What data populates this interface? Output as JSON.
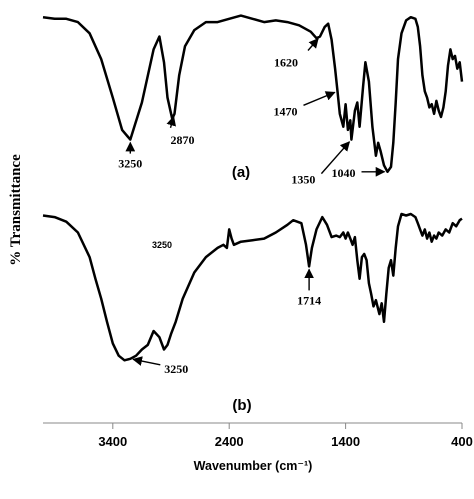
{
  "chart_data": {
    "type": "line",
    "ylabel": "% Transmittance",
    "xlabel": "Wavenumber (cm⁻¹)",
    "xlim": [
      4000,
      400
    ],
    "x_reversed": true,
    "x_ticks": [
      {
        "value": 3400,
        "label": "3400"
      },
      {
        "value": 2400,
        "label": "2400"
      },
      {
        "value": 1400,
        "label": "1400"
      },
      {
        "value": 400,
        "label": "400"
      }
    ],
    "panels": [
      {
        "label": "(a)",
        "points": [
          [
            4000,
            98
          ],
          [
            3900,
            97
          ],
          [
            3800,
            97
          ],
          [
            3700,
            95
          ],
          [
            3600,
            88
          ],
          [
            3500,
            72
          ],
          [
            3400,
            48
          ],
          [
            3320,
            28
          ],
          [
            3250,
            22
          ],
          [
            3150,
            45
          ],
          [
            3050,
            78
          ],
          [
            3000,
            86
          ],
          [
            2960,
            70
          ],
          [
            2930,
            48
          ],
          [
            2890,
            35
          ],
          [
            2870,
            38
          ],
          [
            2830,
            62
          ],
          [
            2780,
            80
          ],
          [
            2700,
            90
          ],
          [
            2600,
            95
          ],
          [
            2500,
            95
          ],
          [
            2400,
            97
          ],
          [
            2300,
            99
          ],
          [
            2200,
            97
          ],
          [
            2100,
            95
          ],
          [
            2000,
            96
          ],
          [
            1900,
            95
          ],
          [
            1800,
            93
          ],
          [
            1700,
            89
          ],
          [
            1650,
            85
          ],
          [
            1620,
            86
          ],
          [
            1580,
            92
          ],
          [
            1550,
            94
          ],
          [
            1520,
            84
          ],
          [
            1490,
            66
          ],
          [
            1470,
            52
          ],
          [
            1450,
            38
          ],
          [
            1420,
            30
          ],
          [
            1400,
            44
          ],
          [
            1380,
            28
          ],
          [
            1360,
            34
          ],
          [
            1350,
            22
          ],
          [
            1320,
            40
          ],
          [
            1300,
            45
          ],
          [
            1280,
            30
          ],
          [
            1250,
            55
          ],
          [
            1230,
            70
          ],
          [
            1200,
            58
          ],
          [
            1170,
            30
          ],
          [
            1140,
            12
          ],
          [
            1120,
            20
          ],
          [
            1100,
            15
          ],
          [
            1070,
            6
          ],
          [
            1040,
            2
          ],
          [
            1010,
            5
          ],
          [
            990,
            20
          ],
          [
            970,
            45
          ],
          [
            950,
            72
          ],
          [
            920,
            88
          ],
          [
            880,
            96
          ],
          [
            840,
            98
          ],
          [
            800,
            97
          ],
          [
            780,
            92
          ],
          [
            760,
            80
          ],
          [
            740,
            62
          ],
          [
            720,
            52
          ],
          [
            700,
            48
          ],
          [
            680,
            42
          ],
          [
            660,
            44
          ],
          [
            640,
            38
          ],
          [
            620,
            46
          ],
          [
            600,
            40
          ],
          [
            580,
            36
          ],
          [
            560,
            42
          ],
          [
            540,
            52
          ],
          [
            520,
            68
          ],
          [
            500,
            78
          ],
          [
            480,
            72
          ],
          [
            460,
            74
          ],
          [
            440,
            66
          ],
          [
            420,
            70
          ],
          [
            400,
            58
          ]
        ],
        "annotations": [
          {
            "text": "3250",
            "x": 3250,
            "y": 22
          },
          {
            "text": "2870",
            "x": 2870,
            "y": 38
          },
          {
            "text": "1620",
            "x": 1620,
            "y": 86
          },
          {
            "text": "1470",
            "x": 1470,
            "y": 52
          },
          {
            "text": "1350",
            "x": 1350,
            "y": 22
          },
          {
            "text": "1040",
            "x": 1040,
            "y": 2
          }
        ]
      },
      {
        "label": "(b)",
        "points": [
          [
            4000,
            99
          ],
          [
            3900,
            98
          ],
          [
            3800,
            95
          ],
          [
            3700,
            88
          ],
          [
            3600,
            72
          ],
          [
            3550,
            58
          ],
          [
            3500,
            45
          ],
          [
            3450,
            30
          ],
          [
            3400,
            16
          ],
          [
            3350,
            8
          ],
          [
            3300,
            5
          ],
          [
            3250,
            6
          ],
          [
            3200,
            8
          ],
          [
            3150,
            12
          ],
          [
            3100,
            15
          ],
          [
            3050,
            24
          ],
          [
            3000,
            20
          ],
          [
            2960,
            12
          ],
          [
            2930,
            15
          ],
          [
            2900,
            22
          ],
          [
            2860,
            30
          ],
          [
            2800,
            45
          ],
          [
            2700,
            62
          ],
          [
            2600,
            72
          ],
          [
            2500,
            78
          ],
          [
            2450,
            80
          ],
          [
            2420,
            78
          ],
          [
            2400,
            90
          ],
          [
            2380,
            84
          ],
          [
            2360,
            80
          ],
          [
            2300,
            82
          ],
          [
            2200,
            83
          ],
          [
            2100,
            84
          ],
          [
            2000,
            88
          ],
          [
            1900,
            93
          ],
          [
            1850,
            96
          ],
          [
            1780,
            94
          ],
          [
            1740,
            80
          ],
          [
            1714,
            66
          ],
          [
            1690,
            78
          ],
          [
            1650,
            90
          ],
          [
            1600,
            98
          ],
          [
            1560,
            93
          ],
          [
            1520,
            85
          ],
          [
            1480,
            86
          ],
          [
            1450,
            85
          ],
          [
            1420,
            88
          ],
          [
            1400,
            84
          ],
          [
            1380,
            88
          ],
          [
            1360,
            84
          ],
          [
            1340,
            80
          ],
          [
            1320,
            85
          ],
          [
            1300,
            70
          ],
          [
            1280,
            58
          ],
          [
            1260,
            72
          ],
          [
            1240,
            74
          ],
          [
            1220,
            70
          ],
          [
            1200,
            55
          ],
          [
            1180,
            48
          ],
          [
            1160,
            40
          ],
          [
            1140,
            44
          ],
          [
            1110,
            35
          ],
          [
            1090,
            42
          ],
          [
            1070,
            30
          ],
          [
            1050,
            48
          ],
          [
            1030,
            65
          ],
          [
            1010,
            70
          ],
          [
            990,
            60
          ],
          [
            970,
            78
          ],
          [
            950,
            92
          ],
          [
            920,
            100
          ],
          [
            880,
            99
          ],
          [
            840,
            100
          ],
          [
            800,
            98
          ],
          [
            780,
            94
          ],
          [
            760,
            90
          ],
          [
            740,
            86
          ],
          [
            720,
            90
          ],
          [
            700,
            84
          ],
          [
            680,
            88
          ],
          [
            660,
            82
          ],
          [
            640,
            86
          ],
          [
            620,
            84
          ],
          [
            600,
            88
          ],
          [
            570,
            86
          ],
          [
            540,
            90
          ],
          [
            510,
            88
          ],
          [
            480,
            94
          ],
          [
            450,
            92
          ],
          [
            420,
            96
          ],
          [
            400,
            97
          ]
        ],
        "annotations": [
          {
            "text": "3250",
            "x": 3250,
            "y": 6
          },
          {
            "text": "1714",
            "x": 1714,
            "y": 66
          }
        ],
        "stray_text": "3250"
      }
    ]
  }
}
